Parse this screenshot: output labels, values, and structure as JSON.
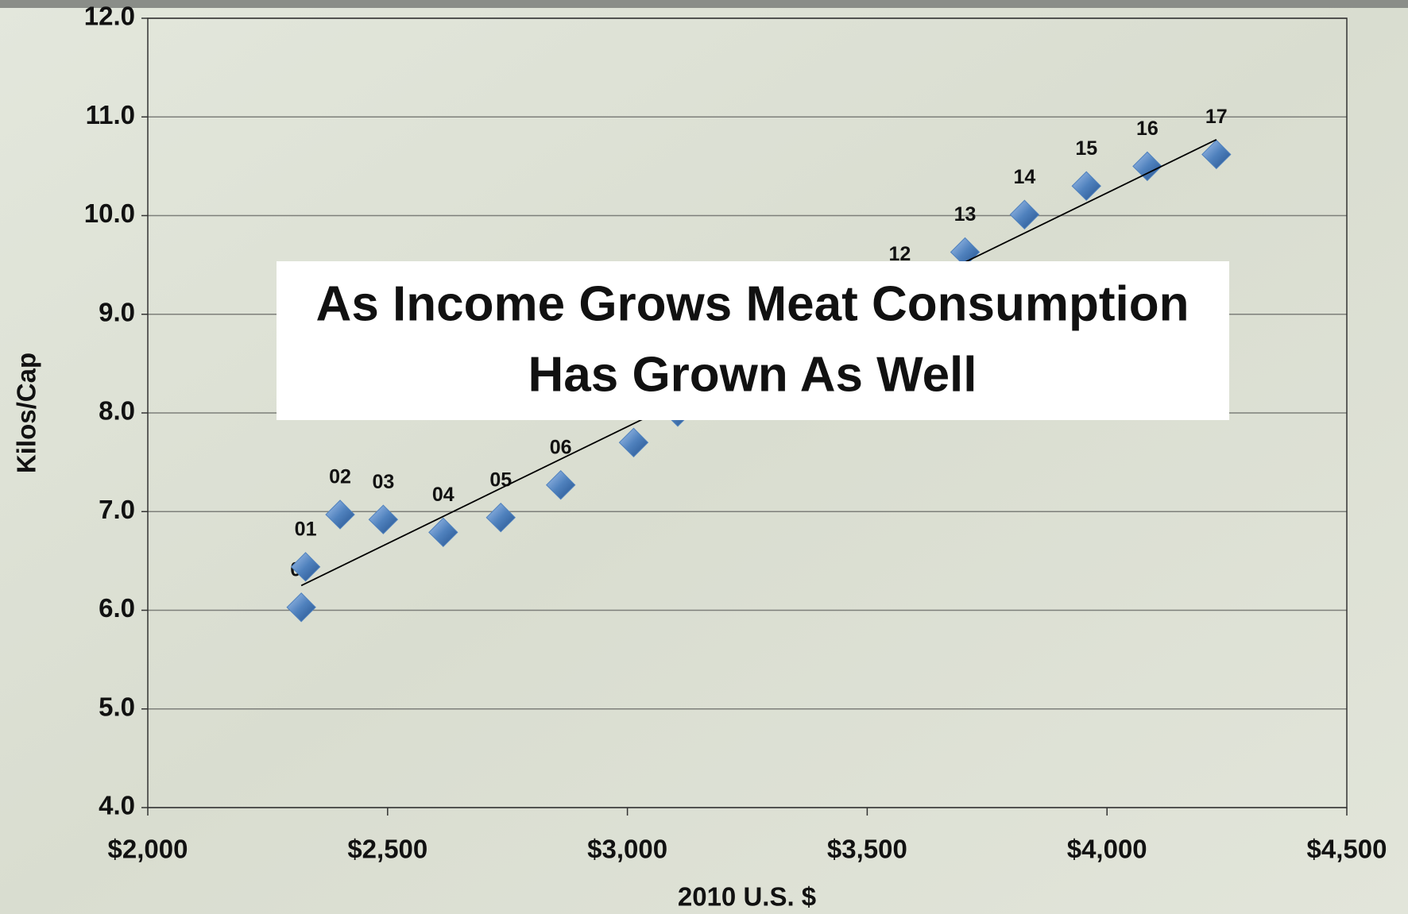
{
  "chart_data": {
    "type": "scatter",
    "overlay_title": [
      "As Income Grows Meat Consumption",
      "Has Grown As Well"
    ],
    "xlabel": "2010 U.S. $",
    "ylabel": "Kilos/Cap",
    "xlim": [
      2000,
      4500
    ],
    "xticks": [
      {
        "value": 2000,
        "label": "$2,000"
      },
      {
        "value": 2500,
        "label": "$2,500"
      },
      {
        "value": 3000,
        "label": "$3,000"
      },
      {
        "value": 3500,
        "label": "$3,500"
      },
      {
        "value": 4000,
        "label": "$4,000"
      },
      {
        "value": 4500,
        "label": "$4,500"
      }
    ],
    "ylim": [
      4,
      12
    ],
    "yticks": [
      {
        "value": 4,
        "label": "4.0"
      },
      {
        "value": 5,
        "label": "5.0"
      },
      {
        "value": 6,
        "label": "6.0"
      },
      {
        "value": 7,
        "label": "7.0"
      },
      {
        "value": 8,
        "label": "8.0"
      },
      {
        "value": 9,
        "label": "9.0"
      },
      {
        "value": 10,
        "label": "10.0"
      },
      {
        "value": 11,
        "label": "11.0"
      },
      {
        "value": 12,
        "label": "12.0"
      }
    ],
    "grid": true,
    "series": [
      {
        "color": "#4f81bd",
        "x": [
          2320,
          2329,
          2401,
          2491,
          2616,
          2736,
          2861,
          3013,
          3105,
          3568,
          3704,
          3828,
          3957,
          4084,
          4228
        ],
        "values": [
          6.03,
          6.44,
          6.97,
          6.92,
          6.79,
          6.94,
          7.27,
          7.7,
          8.01,
          9.23,
          9.63,
          10.01,
          10.3,
          10.5,
          10.62
        ],
        "labels": [
          "00",
          "01",
          "02",
          "03",
          "04",
          "05",
          "06",
          null,
          null,
          "12",
          "13",
          "14",
          "15",
          "16",
          "17"
        ]
      }
    ],
    "trendline": {
      "x": [
        2320,
        4228
      ],
      "values": [
        6.25,
        10.77
      ],
      "color": "#000000"
    }
  }
}
